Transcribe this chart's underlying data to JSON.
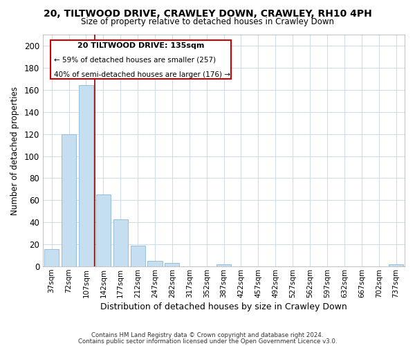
{
  "title": "20, TILTWOOD DRIVE, CRAWLEY DOWN, CRAWLEY, RH10 4PH",
  "subtitle": "Size of property relative to detached houses in Crawley Down",
  "xlabel": "Distribution of detached houses by size in Crawley Down",
  "ylabel": "Number of detached properties",
  "bar_color": "#c5dff0",
  "bar_edge_color": "#8ab8d8",
  "categories": [
    "37sqm",
    "72sqm",
    "107sqm",
    "142sqm",
    "177sqm",
    "212sqm",
    "247sqm",
    "282sqm",
    "317sqm",
    "352sqm",
    "387sqm",
    "422sqm",
    "457sqm",
    "492sqm",
    "527sqm",
    "562sqm",
    "597sqm",
    "632sqm",
    "667sqm",
    "702sqm",
    "737sqm"
  ],
  "values": [
    16,
    120,
    164,
    65,
    43,
    19,
    5,
    3,
    0,
    0,
    2,
    0,
    0,
    0,
    0,
    0,
    0,
    0,
    0,
    0,
    2
  ],
  "ylim": [
    0,
    210
  ],
  "yticks": [
    0,
    20,
    40,
    60,
    80,
    100,
    120,
    140,
    160,
    180,
    200
  ],
  "annotation_title": "20 TILTWOOD DRIVE: 135sqm",
  "annotation_line1": "← 59% of detached houses are smaller (257)",
  "annotation_line2": "40% of semi-detached houses are larger (176) →",
  "footer1": "Contains HM Land Registry data © Crown copyright and database right 2024.",
  "footer2": "Contains public sector information licensed under the Open Government Licence v3.0.",
  "background_color": "#ffffff",
  "grid_color": "#d0dce8"
}
